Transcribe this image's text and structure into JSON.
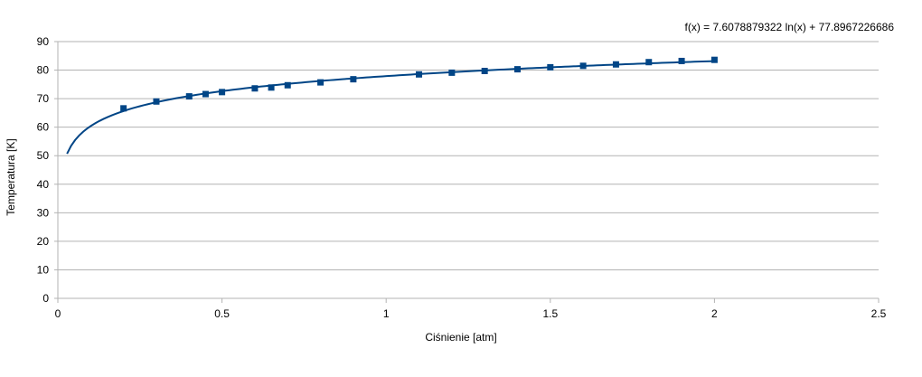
{
  "chart_data": {
    "type": "scatter",
    "xlabel": "Ciśnienie [atm]",
    "ylabel": "Temperatura [K]",
    "xlim": [
      0,
      2.5
    ],
    "ylim": [
      0,
      90
    ],
    "x_ticks": [
      "0",
      "0.5",
      "1",
      "1.5",
      "2",
      "2.5"
    ],
    "y_ticks": [
      "0",
      "10",
      "20",
      "30",
      "40",
      "50",
      "60",
      "70",
      "80",
      "90"
    ],
    "grid": "horizontal",
    "colors": {
      "series": "#004586",
      "grid": "#b3b3b3",
      "axis": "#b3b3b3"
    },
    "series": [
      {
        "marker": "square",
        "points": [
          {
            "x": 0.2,
            "y": 66.6
          },
          {
            "x": 0.3,
            "y": 69.0
          },
          {
            "x": 0.4,
            "y": 70.8
          },
          {
            "x": 0.45,
            "y": 71.6
          },
          {
            "x": 0.5,
            "y": 72.3
          },
          {
            "x": 0.6,
            "y": 73.6
          },
          {
            "x": 0.65,
            "y": 73.9
          },
          {
            "x": 0.7,
            "y": 74.7
          },
          {
            "x": 0.8,
            "y": 75.7
          },
          {
            "x": 0.9,
            "y": 76.8
          },
          {
            "x": 1.1,
            "y": 78.5
          },
          {
            "x": 1.2,
            "y": 79.1
          },
          {
            "x": 1.3,
            "y": 79.7
          },
          {
            "x": 1.4,
            "y": 80.3
          },
          {
            "x": 1.5,
            "y": 81.0
          },
          {
            "x": 1.6,
            "y": 81.5
          },
          {
            "x": 1.7,
            "y": 82.0
          },
          {
            "x": 1.8,
            "y": 82.8
          },
          {
            "x": 1.9,
            "y": 83.2
          },
          {
            "x": 2.0,
            "y": 83.6
          }
        ]
      }
    ],
    "trendline": {
      "type": "logarithmic",
      "a": 7.6078879322,
      "b": 77.8967226686,
      "x_range": [
        0.028,
        2.0
      ],
      "equation": "f(x) = 7.6078879322 ln(x) + 77.8967226686"
    }
  }
}
